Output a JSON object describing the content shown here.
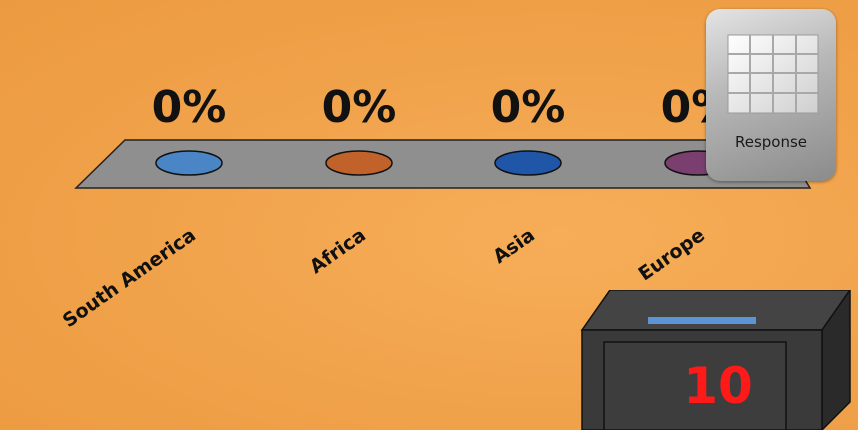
{
  "chart_data": {
    "type": "bar",
    "categories": [
      "South America",
      "Africa",
      "Asia",
      "Europe"
    ],
    "values": [
      0,
      0,
      0,
      0
    ],
    "value_labels": [
      "0%",
      "0%",
      "0%",
      "0%"
    ],
    "colors": [
      "#4a86c6",
      "#c0622a",
      "#1f56a8",
      "#7a3f6e"
    ]
  },
  "response": {
    "label": "Response",
    "icon": "grid-icon"
  },
  "countdown": {
    "value": "10",
    "color": "#ff1a1a"
  }
}
